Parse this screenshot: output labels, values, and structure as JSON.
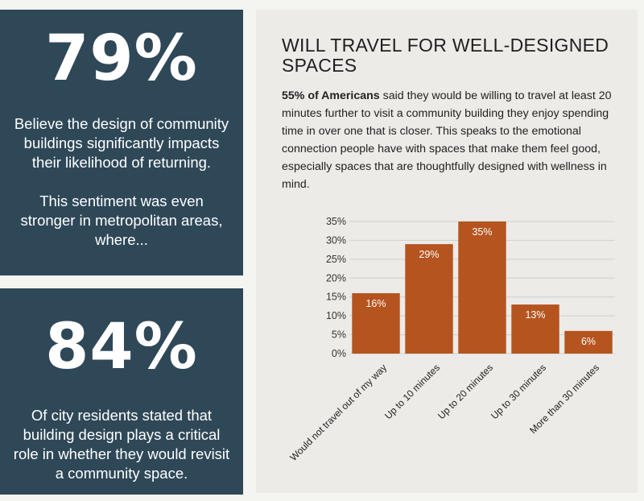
{
  "left_panel": {
    "stat1": {
      "value": "79%",
      "text": "Believe the design of community buildings significantly impacts their likelihood of returning.",
      "extra": "This sentiment was even stronger in metropolitan areas, where..."
    },
    "stat2": {
      "value": "84%",
      "text": "Of city residents stated that building design plays a critical role in whether they would revisit a community space."
    }
  },
  "right_panel": {
    "title": "WILL TRAVEL FOR WELL-DESIGNED SPACES",
    "body_bold": "55% of Americans",
    "body_rest": " said they would be willing to travel at least 20 minutes further to visit a community building they enjoy spending time in over one that is closer. This speaks to the emotional connection people have with spaces that make them feel good, especially spaces that are thoughtfully designed with wellness in mind."
  },
  "colors": {
    "panel": "#2f4858",
    "bar": "#b5541f",
    "grid": "#cfcfcf",
    "background": "#ecebe7"
  },
  "chart_data": {
    "type": "bar",
    "title": "",
    "xlabel": "",
    "ylabel": "",
    "categories": [
      "Would not travel out of my way",
      "Up to 10 minutes",
      "Up to 20 minutes",
      "Up to 30 minutes",
      "More than 30 minutes"
    ],
    "values": [
      16,
      29,
      35,
      13,
      6
    ],
    "value_labels": [
      "16%",
      "29%",
      "35%",
      "13%",
      "6%"
    ],
    "ylim": [
      0,
      35
    ],
    "yticks": [
      0,
      5,
      10,
      15,
      20,
      25,
      30,
      35
    ],
    "ytick_labels": [
      "0%",
      "5%",
      "10%",
      "15%",
      "20%",
      "25%",
      "30%",
      "35%"
    ],
    "grid": true
  }
}
